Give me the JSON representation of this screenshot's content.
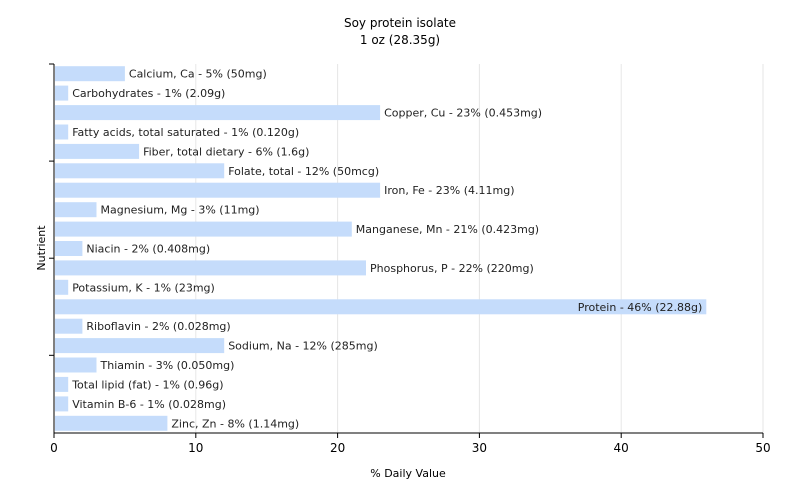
{
  "chart_data": {
    "type": "bar",
    "orientation": "horizontal",
    "title": "Soy protein isolate",
    "subtitle": "1 oz (28.35g)",
    "xlabel": "% Daily Value",
    "ylabel": "Nutrient",
    "xlim": [
      0,
      50
    ],
    "xticks": [
      0,
      10,
      20,
      30,
      40,
      50
    ],
    "grid": true,
    "bar_color": "#c5dcfb",
    "categories": [
      "Calcium, Ca",
      "Carbohydrates",
      "Copper, Cu",
      "Fatty acids, total saturated",
      "Fiber, total dietary",
      "Folate, total",
      "Iron, Fe",
      "Magnesium, Mg",
      "Manganese, Mn",
      "Niacin",
      "Phosphorus, P",
      "Potassium, K",
      "Protein",
      "Riboflavin",
      "Sodium, Na",
      "Thiamin",
      "Total lipid (fat)",
      "Vitamin B-6",
      "Zinc, Zn"
    ],
    "values": [
      5,
      1,
      23,
      1,
      6,
      12,
      23,
      3,
      21,
      2,
      22,
      1,
      46,
      2,
      12,
      3,
      1,
      1,
      8
    ],
    "labels": [
      "Calcium, Ca - 5% (50mg)",
      "Carbohydrates - 1% (2.09g)",
      "Copper, Cu - 23% (0.453mg)",
      "Fatty acids, total saturated - 1% (0.120g)",
      "Fiber, total dietary - 6% (1.6g)",
      "Folate, total - 12% (50mcg)",
      "Iron, Fe - 23% (4.11mg)",
      "Magnesium, Mg - 3% (11mg)",
      "Manganese, Mn - 21% (0.423mg)",
      "Niacin - 2% (0.408mg)",
      "Phosphorus, P - 22% (220mg)",
      "Potassium, K - 1% (23mg)",
      "Protein - 46% (22.88g)",
      "Riboflavin - 2% (0.028mg)",
      "Sodium, Na - 12% (285mg)",
      "Thiamin - 3% (0.050mg)",
      "Total lipid (fat) - 1% (0.96g)",
      "Vitamin B-6 - 1% (0.028mg)",
      "Zinc, Zn - 8% (1.14mg)"
    ]
  }
}
